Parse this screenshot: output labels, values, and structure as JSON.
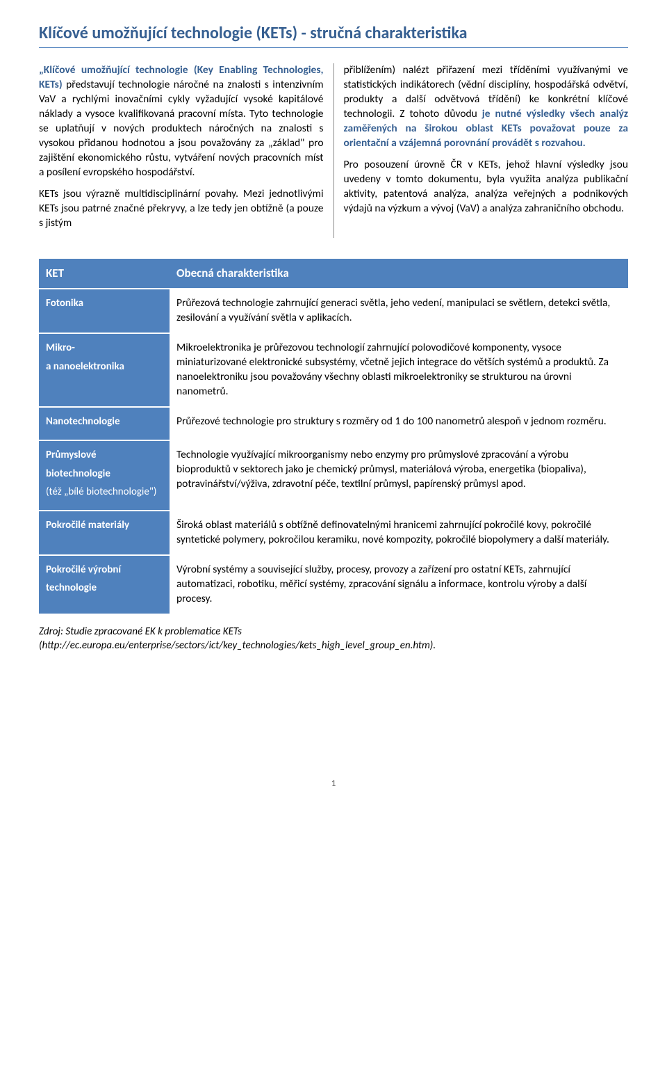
{
  "title": "Klíčové umožňující technologie (KETs) - stručná charakteristika",
  "col_left": {
    "p1_bold": "„Klíčové umožňující technologie (Key Enabling Technologies, KETs)",
    "p1_rest": " představují technologie náročné na znalosti s intenzivním VaV a rychlými inovačními cykly vyžadující vysoké kapitálové náklady a vysoce kvalifikovaná pracovní místa. Tyto technologie se uplatňují v nových produktech náročných na znalosti s vysokou přidanou hodnotou a jsou považovány za „základ\" pro zajištění ekonomického růstu, vytváření nových pracovních míst a posílení evropského hospodářství.",
    "p2": "KETs jsou výrazně multidisciplinární povahy. Mezi jednotlivými KETs jsou patrné značné překryvy, a lze tedy jen obtížně (a pouze s jistým"
  },
  "col_right": {
    "p1_a": "přiblížením) nalézt přiřazení mezi tříděními využívanými ve statistických indikátorech (vědní disciplíny, hospodářská odvětví, produkty a další odvětvová třídění) ke konkrétní klíčové technologii. Z tohoto důvodu ",
    "p1_bold": "je nutné výsledky všech analýz zaměřených na širokou oblast KETs považovat pouze za orientační a vzájemná porovnání provádět s rozvahou.",
    "p2": "Pro posouzení úrovně ČR v KETs, jehož hlavní výsledky jsou uvedeny v tomto dokumentu, byla využita analýza publikační aktivity, patentová analýza, analýza veřejných a podnikových výdajů na výzkum a vývoj (VaV) a analýza zahraničního obchodu."
  },
  "table": {
    "header_left": "KET",
    "header_right": "Obecná charakteristika",
    "rows": [
      {
        "label_lines": [
          "Fotonika"
        ],
        "label_sub": "",
        "desc": "Průřezová technologie zahrnující generaci světla, jeho vedení, manipulaci se světlem, detekci světla, zesilování a využívání světla v aplikacích."
      },
      {
        "label_lines": [
          "Mikro-",
          "a nanoelektronika"
        ],
        "label_sub": "",
        "desc": "Mikroelektronika je průřezovou technologií zahrnující polovodičové komponenty, vysoce miniaturizované elektronické subsystémy, včetně jejich integrace do větších systémů a produktů. Za nanoelektroniku jsou považovány všechny oblasti mikroelektroniky se strukturou na úrovni nanometrů."
      },
      {
        "label_lines": [
          "Nanotechnologie"
        ],
        "label_sub": "",
        "desc": "Průřezové technologie pro struktury s rozměry od 1 do 100 nanometrů alespoň v jednom rozměru."
      },
      {
        "label_lines": [
          "Průmyslové",
          "biotechnologie"
        ],
        "label_sub": "(též „bílé biotechnologie\")",
        "desc": "Technologie využívající mikroorganismy nebo enzymy pro průmyslové zpracování a výrobu bioproduktů v sektorech jako je chemický průmysl, materiálová výroba, energetika (biopaliva), potravinářství/výživa, zdravotní péče, textilní průmysl, papírenský průmysl apod."
      },
      {
        "label_lines": [
          "Pokročilé materiály"
        ],
        "label_sub": "",
        "desc": "Široká oblast materiálů s obtížně definovatelnými hranicemi zahrnující pokročilé kovy, pokročilé syntetické polymery, pokročilou keramiku, nové kompozity, pokročilé biopolymery a další materiály."
      },
      {
        "label_lines": [
          "Pokročilé výrobní",
          "technologie"
        ],
        "label_sub": "",
        "desc": "Výrobní systémy a související služby, procesy, provozy a zařízení pro ostatní KETs, zahrnující automatizaci, robotiku, měřicí systémy, zpracování signálu a informace, kontrolu výroby a další procesy."
      }
    ]
  },
  "source_line1": "Zdroj: Studie zpracované EK k problematice KETs",
  "source_line2": "(http://ec.europa.eu/enterprise/sectors/ict/key_technologies/kets_high_level_group_en.htm).",
  "page_number": "1"
}
